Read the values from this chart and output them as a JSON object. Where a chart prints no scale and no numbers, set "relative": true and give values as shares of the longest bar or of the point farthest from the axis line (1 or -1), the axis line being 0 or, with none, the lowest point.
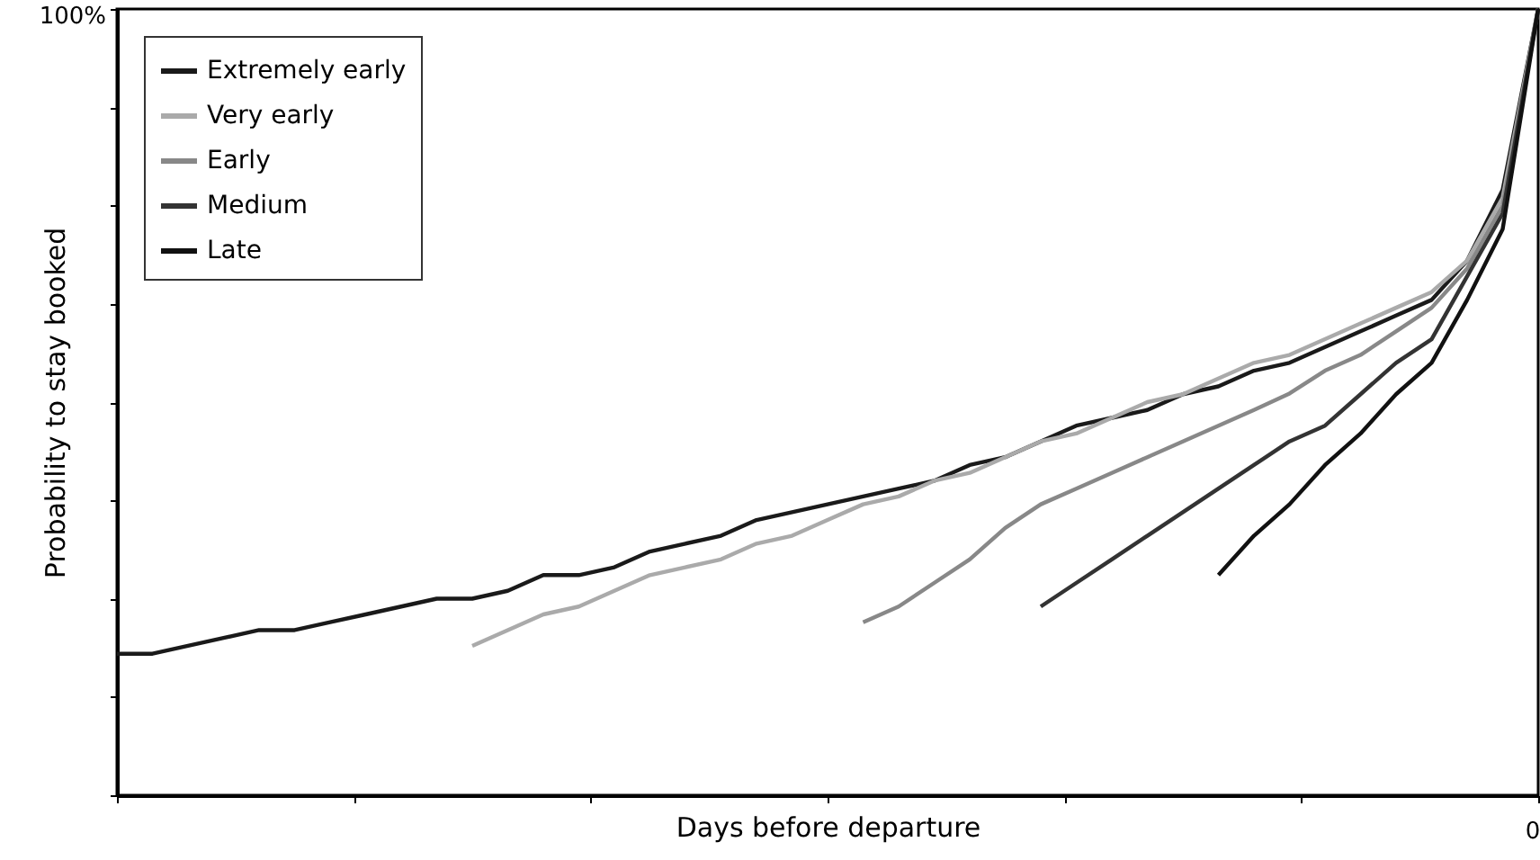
{
  "chart_data": {
    "type": "line",
    "relative": true,
    "xlabel": "Days before departure",
    "ylabel": "Probability to stay booked",
    "categories": [
      null,
      null,
      null,
      null,
      null,
      null,
      null,
      null,
      null,
      null,
      null,
      null,
      null,
      null,
      null,
      null,
      null,
      null,
      null,
      null,
      null,
      null,
      null,
      null,
      null,
      null,
      null,
      null,
      null,
      null,
      null,
      null,
      null,
      null,
      null,
      null,
      null,
      null,
      null,
      null,
      null
    ],
    "series": [
      {
        "name": "Extremely early",
        "color": "#1a1a1a",
        "values": [
          0.18,
          0.18,
          0.19,
          0.2,
          0.21,
          0.21,
          0.22,
          0.23,
          0.24,
          0.25,
          0.25,
          0.26,
          0.28,
          0.28,
          0.29,
          0.31,
          0.32,
          0.33,
          0.35,
          0.36,
          0.37,
          0.38,
          0.39,
          0.4,
          0.42,
          0.43,
          0.45,
          0.47,
          0.48,
          0.49,
          0.51,
          0.52,
          0.54,
          0.55,
          0.57,
          0.59,
          0.61,
          0.63,
          0.68,
          0.77,
          1.0
        ]
      },
      {
        "name": "Very early",
        "color": "#aaaaaa",
        "values": [
          null,
          null,
          null,
          null,
          null,
          null,
          null,
          null,
          null,
          null,
          0.19,
          0.21,
          0.23,
          0.24,
          0.26,
          0.28,
          0.29,
          0.3,
          0.32,
          0.33,
          0.35,
          0.37,
          0.38,
          0.4,
          0.41,
          0.43,
          0.45,
          0.46,
          0.48,
          0.5,
          0.51,
          0.53,
          0.55,
          0.56,
          0.58,
          0.6,
          0.62,
          0.64,
          0.68,
          0.76,
          1.0
        ]
      },
      {
        "name": "Early",
        "color": "#888888",
        "values": [
          null,
          null,
          null,
          null,
          null,
          null,
          null,
          null,
          null,
          null,
          null,
          null,
          null,
          null,
          null,
          null,
          null,
          null,
          null,
          null,
          null,
          0.22,
          0.24,
          0.27,
          0.3,
          0.34,
          0.37,
          0.39,
          0.41,
          0.43,
          0.45,
          0.47,
          0.49,
          0.511,
          0.54,
          0.56,
          0.59,
          0.62,
          0.67,
          0.75,
          1.0
        ]
      },
      {
        "name": "Medium",
        "color": "#333333",
        "values": [
          null,
          null,
          null,
          null,
          null,
          null,
          null,
          null,
          null,
          null,
          null,
          null,
          null,
          null,
          null,
          null,
          null,
          null,
          null,
          null,
          null,
          null,
          null,
          null,
          null,
          null,
          0.24,
          0.27,
          0.3,
          0.33,
          0.36,
          0.39,
          0.42,
          0.45,
          0.47,
          0.51,
          0.55,
          0.58,
          0.66,
          0.74,
          1.0
        ]
      },
      {
        "name": "Late",
        "color": "#111111",
        "values": [
          null,
          null,
          null,
          null,
          null,
          null,
          null,
          null,
          null,
          null,
          null,
          null,
          null,
          null,
          null,
          null,
          null,
          null,
          null,
          null,
          null,
          null,
          null,
          null,
          null,
          null,
          null,
          null,
          null,
          null,
          null,
          0.28,
          0.33,
          0.37,
          0.42,
          0.46,
          0.51,
          0.55,
          0.63,
          0.72,
          1.0
        ]
      }
    ],
    "legend": "top left",
    "grid": false,
    "annotations": [
      "100%",
      "0"
    ]
  }
}
